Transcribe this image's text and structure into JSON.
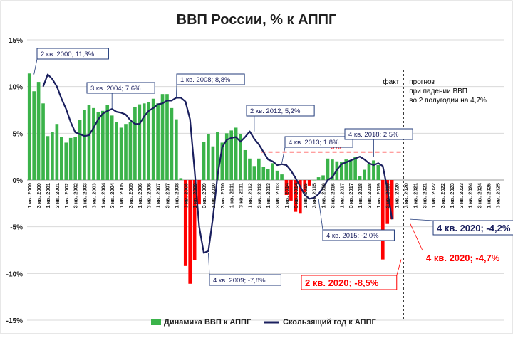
{
  "chart_data": {
    "type": "bar",
    "title": "ВВП России, % к АППГ",
    "ylim": [
      -15,
      15
    ],
    "y_ticks": [
      15,
      10,
      5,
      0,
      -5,
      -10,
      -15
    ],
    "y_tick_labels": [
      "15%",
      "10%",
      "5%",
      "0%",
      "-5%",
      "-10%",
      "-15%"
    ],
    "grid": true,
    "legend_position": "bottom",
    "start_year": 2000,
    "end_year": 2025,
    "x_tick_labels_note": "1 кв. YYYY and 3 кв. YYYY",
    "series": [
      {
        "name": "Динамика ВВП к АППГ",
        "kind": "bar",
        "values": [
          11.4,
          9.5,
          10.5,
          8.2,
          4.7,
          5.1,
          6.0,
          4.6,
          4.0,
          4.5,
          4.6,
          6.4,
          7.5,
          8.0,
          7.7,
          7.3,
          7.4,
          8.0,
          6.9,
          6.2,
          5.6,
          6.0,
          6.2,
          7.8,
          8.1,
          8.2,
          8.3,
          8.7,
          8.2,
          9.2,
          9.2,
          7.7,
          6.5,
          0.2,
          -9.2,
          -11.1,
          -8.6,
          -2.6,
          4.1,
          4.9,
          3.6,
          5.1,
          4.0,
          5.0,
          5.3,
          5.6,
          4.9,
          3.2,
          2.3,
          1.5,
          2.3,
          1.4,
          1.2,
          1.8,
          1.0,
          0.6,
          -1.6,
          -2.2,
          -3.4,
          -3.6,
          -1.3,
          -0.6,
          0.0,
          0.3,
          0.5,
          2.3,
          2.2,
          2.0,
          1.9,
          2.2,
          2.1,
          2.5,
          0.4,
          1.1,
          1.7,
          2.1,
          1.6,
          -8.5,
          -4.7,
          -4.2
        ]
      },
      {
        "name": "Скользящий год к АППГ",
        "kind": "line",
        "values": [
          10.0,
          11.3,
          10.8,
          10.0,
          8.7,
          7.6,
          6.2,
          5.1,
          4.9,
          4.7,
          4.8,
          5.6,
          6.5,
          7.1,
          7.4,
          7.6,
          7.3,
          7.2,
          7.0,
          6.4,
          6.0,
          6.0,
          6.8,
          7.4,
          7.7,
          8.1,
          8.2,
          8.5,
          8.5,
          8.8,
          8.8,
          8.4,
          6.5,
          1.0,
          -5.0,
          -7.8,
          -7.6,
          -4.0,
          0.5,
          3.5,
          4.3,
          4.5,
          4.6,
          4.1,
          4.6,
          5.2,
          4.4,
          3.8,
          3.0,
          2.2,
          2.0,
          1.6,
          1.7,
          1.6,
          1.0,
          0.2,
          -0.7,
          -1.6,
          -2.0,
          -1.9,
          -1.5,
          -0.8,
          0.0,
          0.3,
          1.1,
          1.7,
          1.9,
          2.1,
          2.3,
          2.5,
          2.2,
          1.8,
          1.6,
          1.8,
          1.5,
          -1.0,
          -4.2
        ]
      }
    ],
    "reference_line": {
      "label": "3%",
      "value": 3.0,
      "from_year": 2012.75,
      "to_year": 2020.5,
      "color": "#ff0000"
    },
    "fact_forecast_divider": {
      "year": 2020.5,
      "left_label": "факт",
      "right_label": [
        "прогноз",
        "при падении ВВП",
        "во 2 полугодии на 4,7%"
      ]
    },
    "annotations": [
      {
        "text": "2 кв. 2000; 11,3%",
        "year": 2000.25,
        "value": 11.3,
        "style": "blue-box"
      },
      {
        "text": "3 кв. 2004; 7,6%",
        "year": 2004.5,
        "value": 7.6,
        "style": "blue-box"
      },
      {
        "text": "1 кв. 2008; 8,8%",
        "year": 2008.0,
        "value": 8.8,
        "style": "blue-box"
      },
      {
        "text": "2 кв. 2012; 5,2%",
        "year": 2012.25,
        "value": 5.2,
        "style": "blue-box"
      },
      {
        "text": "4 кв. 2013; 1,8%",
        "year": 2013.75,
        "value": 1.8,
        "style": "blue-box"
      },
      {
        "text": "4 кв. 2018; 2,5%",
        "year": 2018.75,
        "value": 2.5,
        "style": "blue-box"
      },
      {
        "text": "4 кв. 2009; -7,8%",
        "year": 2009.75,
        "value": -7.8,
        "style": "blue-box"
      },
      {
        "text": "4 кв. 2015; -2,0%",
        "year": 2015.75,
        "value": -2.0,
        "style": "blue-box"
      },
      {
        "text": "4 кв. 2020; -4,2%",
        "year": 2020.75,
        "value": -4.2,
        "style": "blue-box-large"
      },
      {
        "text": "2 кв. 2020; -8,5%",
        "year": 2020.25,
        "value": -8.5,
        "style": "red-box-large"
      },
      {
        "text": "4 кв. 2020; -4,7%",
        "year": 2020.75,
        "value": -4.7,
        "style": "red-text-large"
      }
    ],
    "colors": {
      "bar_positive": "#3bb34a",
      "bar_negative": "#ff0000",
      "line": "#1a1f5e",
      "grid": "#d9d9d9",
      "title": "#1f1f1f",
      "annotation_border": "#203a7a"
    }
  }
}
